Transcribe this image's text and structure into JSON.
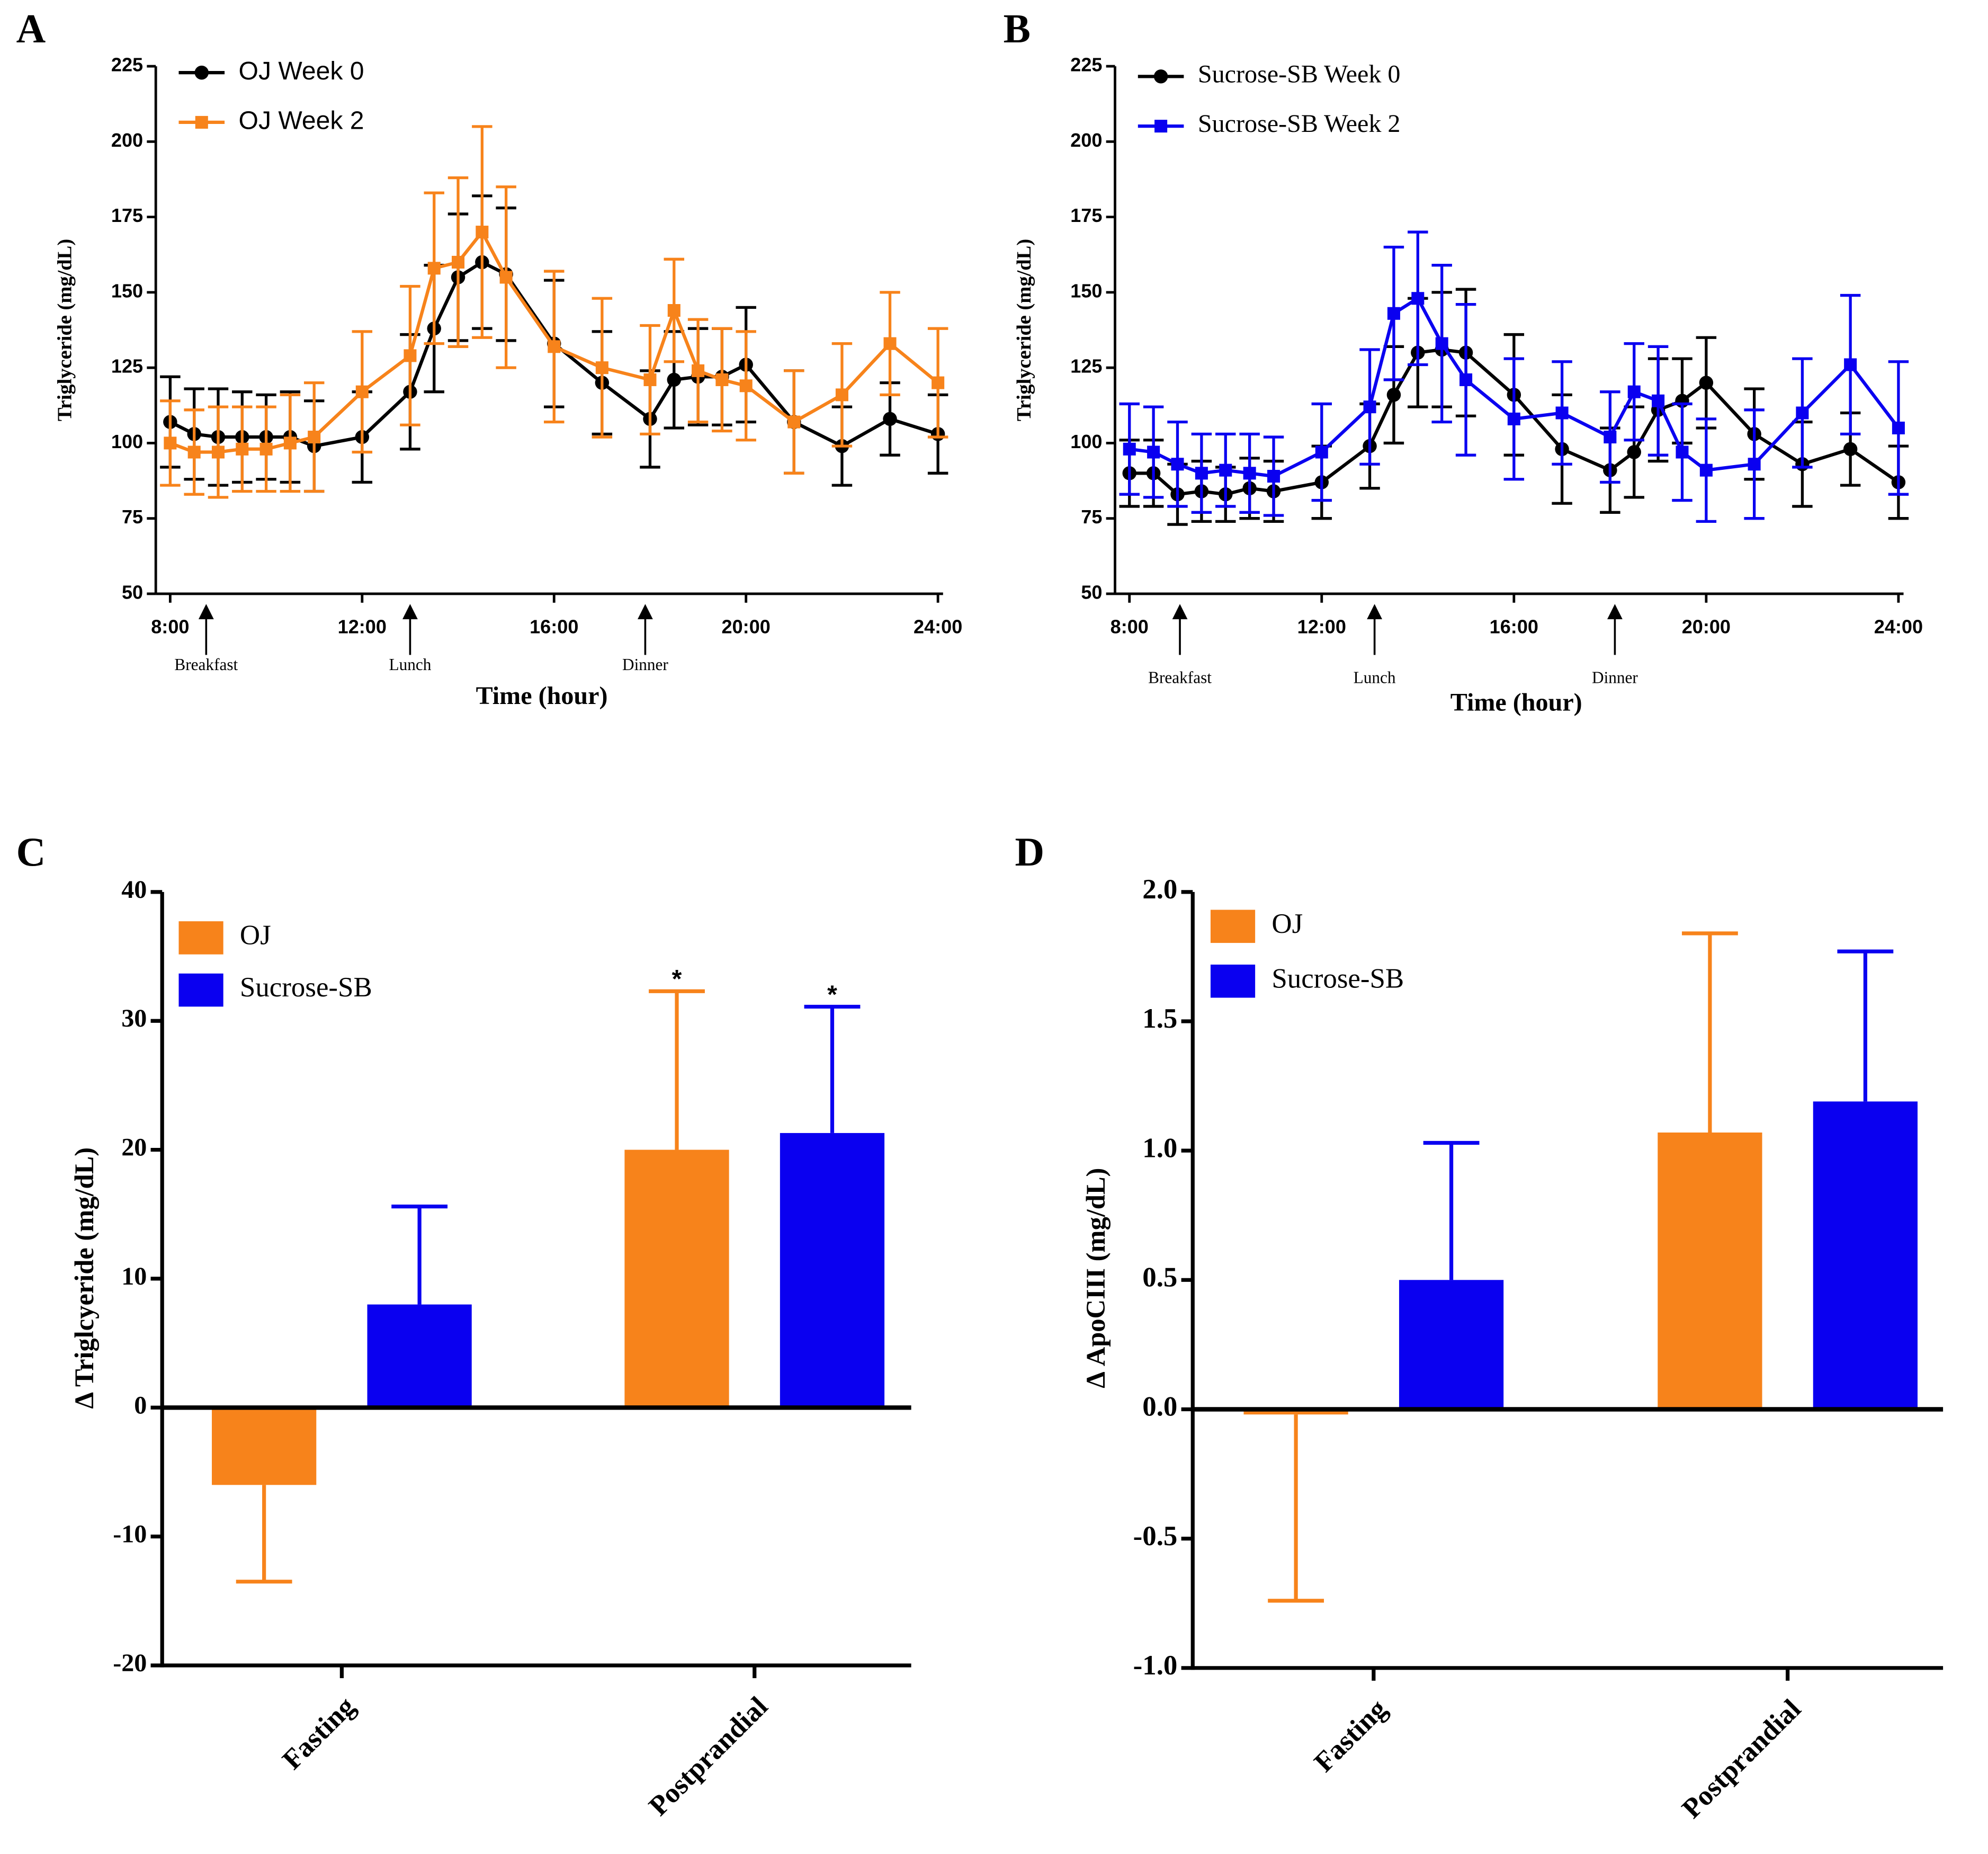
{
  "chart_data": [
    {
      "type": "line",
      "panel_label": "A",
      "xlabel": "Time (hour)",
      "ylabel": "Triglyceride (mg/dL)",
      "x": [
        8,
        8.5,
        9,
        9.5,
        10,
        10.5,
        11,
        12,
        13,
        13.5,
        14,
        14.5,
        15,
        16,
        17,
        18,
        18.5,
        19,
        19.5,
        20,
        21,
        22,
        23,
        24
      ],
      "series": [
        {
          "name": "OJ Week 0",
          "color": "#000000",
          "marker": "circle",
          "values": [
            107,
            103,
            102,
            102,
            102,
            102,
            99,
            102,
            117,
            138,
            155,
            160,
            156,
            133,
            120,
            108,
            121,
            122,
            122,
            126,
            107,
            99,
            108,
            103
          ],
          "errors": [
            15,
            15,
            16,
            15,
            14,
            15,
            15,
            15,
            19,
            21,
            21,
            22,
            22,
            21,
            17,
            16,
            16,
            16,
            16,
            19,
            17,
            13,
            12,
            13
          ]
        },
        {
          "name": "OJ  Week 2",
          "color": "#f7831b",
          "marker": "square",
          "values": [
            100,
            97,
            97,
            98,
            98,
            100,
            102,
            117,
            129,
            158,
            160,
            170,
            155,
            132,
            125,
            121,
            144,
            124,
            121,
            119,
            107,
            116,
            133,
            120
          ],
          "errors": [
            14,
            14,
            15,
            14,
            14,
            16,
            18,
            20,
            23,
            25,
            28,
            35,
            30,
            25,
            23,
            18,
            17,
            17,
            17,
            18,
            17,
            17,
            17,
            18
          ]
        }
      ],
      "xlim": [
        7.7,
        24
      ],
      "xticks": [
        {
          "value": 8,
          "label": "8:00"
        },
        {
          "value": 12,
          "label": "12:00"
        },
        {
          "value": 16,
          "label": "16:00"
        },
        {
          "value": 20,
          "label": "20:00"
        },
        {
          "value": 24,
          "label": "24:00"
        }
      ],
      "ylim": [
        50,
        225
      ],
      "yticks": [
        50,
        75,
        100,
        125,
        150,
        175,
        200,
        225
      ],
      "annotations": [
        {
          "text": "Breakfast",
          "x": 8.75
        },
        {
          "text": "Lunch",
          "x": 13
        },
        {
          "text": "Dinner",
          "x": 17.9
        }
      ],
      "legend": "upper left"
    },
    {
      "type": "line",
      "panel_label": "B",
      "xlabel": "Time (hour)",
      "ylabel": "Triglyceride (mg/dL)",
      "x": [
        8,
        8.5,
        9,
        9.5,
        10,
        10.5,
        11,
        12,
        13,
        13.5,
        14,
        14.5,
        15,
        16,
        17,
        18,
        18.5,
        19,
        19.5,
        20,
        21,
        22,
        23,
        24
      ],
      "series": [
        {
          "name": "Sucrose-SB Week 0",
          "color": "#000000",
          "marker": "circle",
          "values": [
            90,
            90,
            83,
            84,
            83,
            85,
            84,
            87,
            99,
            116,
            130,
            131,
            130,
            116,
            98,
            91,
            97,
            111,
            114,
            120,
            103,
            93,
            98,
            87
          ],
          "errors": [
            11,
            11,
            10,
            10,
            9,
            10,
            10,
            12,
            14,
            16,
            18,
            19,
            21,
            20,
            18,
            14,
            15,
            17,
            14,
            15,
            15,
            14,
            12,
            12
          ]
        },
        {
          "name": "Sucrose-SB Week 2",
          "color": "#0a00f0",
          "marker": "square",
          "values": [
            98,
            97,
            93,
            90,
            91,
            90,
            89,
            97,
            112,
            143,
            148,
            133,
            121,
            108,
            110,
            102,
            117,
            114,
            97,
            91,
            93,
            110,
            126,
            105
          ],
          "errors": [
            15,
            15,
            14,
            13,
            12,
            13,
            13,
            16,
            19,
            22,
            22,
            26,
            25,
            20,
            17,
            15,
            16,
            18,
            16,
            17,
            18,
            18,
            23,
            22
          ]
        }
      ],
      "xlim": [
        7.7,
        24
      ],
      "xticks": [
        {
          "value": 8,
          "label": "8:00"
        },
        {
          "value": 12,
          "label": "12:00"
        },
        {
          "value": 16,
          "label": "16:00"
        },
        {
          "value": 20,
          "label": "20:00"
        },
        {
          "value": 24,
          "label": "24:00"
        }
      ],
      "ylim": [
        50,
        225
      ],
      "yticks": [
        50,
        75,
        100,
        125,
        150,
        175,
        200,
        225
      ],
      "annotations": [
        {
          "text": "Breakfast",
          "x": 9.05
        },
        {
          "text": "Lunch",
          "x": 13.1
        },
        {
          "text": "Dinner",
          "x": 18.1
        }
      ],
      "legend": "upper left"
    },
    {
      "type": "bar",
      "panel_label": "C",
      "ylabel": "Δ Triglcyeride (mg/dL)",
      "categories": [
        "Fasting",
        "Postprandial"
      ],
      "series": [
        {
          "name": "OJ",
          "color": "#f7831b",
          "values": [
            -6,
            20
          ],
          "errors": [
            7.5,
            12.3
          ]
        },
        {
          "name": "Sucrose-SB",
          "color": "#0a00f0",
          "values": [
            8,
            21.3
          ],
          "errors": [
            7.6,
            9.8
          ]
        }
      ],
      "ylim": [
        -20,
        40
      ],
      "yticks": [
        -20,
        -10,
        0,
        10,
        20,
        30,
        40
      ],
      "annotations": [
        {
          "text": "*",
          "category": 1,
          "series": 0
        },
        {
          "text": "*",
          "category": 1,
          "series": 1
        }
      ],
      "legend": "upper left"
    },
    {
      "type": "bar",
      "panel_label": "D",
      "ylabel": "Δ ApoCIII (mg/dL)",
      "categories": [
        "Fasting",
        "Postprandial"
      ],
      "series": [
        {
          "name": "OJ",
          "color": "#f7831b",
          "values": [
            -0.02,
            1.07
          ],
          "errors": [
            0.72,
            0.77
          ]
        },
        {
          "name": "Sucrose-SB",
          "color": "#0a00f0",
          "values": [
            0.5,
            1.19
          ],
          "errors": [
            0.53,
            0.58
          ]
        }
      ],
      "ylim": [
        -1,
        2
      ],
      "yticks": [
        {
          "value": -1,
          "label": "-1.0"
        },
        -0.5,
        {
          "value": 0,
          "label": "0.0"
        },
        0.5,
        {
          "value": 1,
          "label": "1.0"
        },
        1.5,
        {
          "value": 2,
          "label": "2.0"
        }
      ],
      "legend": "upper left"
    }
  ]
}
